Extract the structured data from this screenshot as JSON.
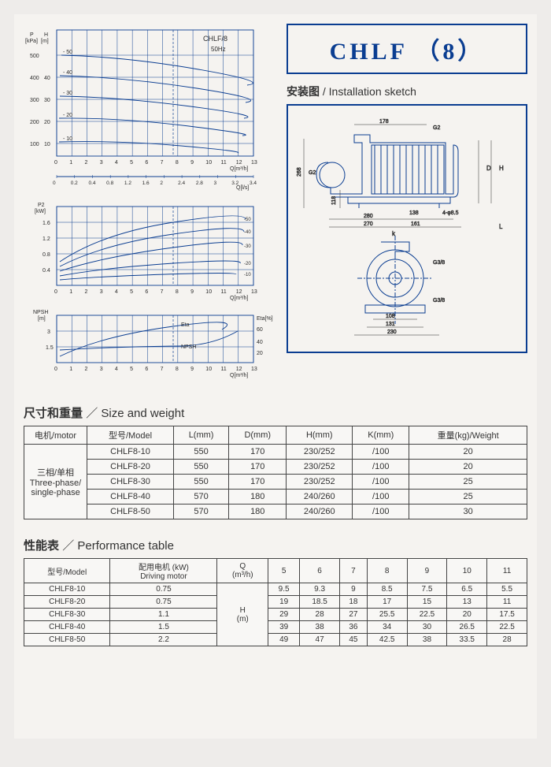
{
  "product": {
    "name": "CHLF （8）"
  },
  "install": {
    "heading_cn": "安装图",
    "heading_en": "Installation sketch"
  },
  "size_weight": {
    "heading_cn": "尺寸和重量",
    "heading_en": "Size and weight",
    "cols": [
      "电机/motor",
      "型号/Model",
      "L(mm)",
      "D(mm)",
      "H(mm)",
      "K(mm)",
      "重量(kg)/Weight"
    ],
    "motor_label": "三相/单相\nThree-phase/\nsingle-phase",
    "rows": [
      [
        "CHLF8-10",
        "550",
        "170",
        "230/252",
        "/100",
        "20"
      ],
      [
        "CHLF8-20",
        "550",
        "170",
        "230/252",
        "/100",
        "20"
      ],
      [
        "CHLF8-30",
        "550",
        "170",
        "230/252",
        "/100",
        "25"
      ],
      [
        "CHLF8-40",
        "570",
        "180",
        "240/260",
        "/100",
        "25"
      ],
      [
        "CHLF8-50",
        "570",
        "180",
        "240/260",
        "/100",
        "30"
      ]
    ]
  },
  "performance": {
    "heading_cn": "性能表",
    "heading_en": "Performance table",
    "cols": [
      "型号/Model",
      "配用电机 (kW)\nDriving motor",
      "Q\n(m³/h)",
      "5",
      "6",
      "7",
      "8",
      "9",
      "10",
      "11"
    ],
    "h_unit": "H\n(m)",
    "rows": [
      [
        "CHLF8-10",
        "0.75",
        "9.5",
        "9.3",
        "9",
        "8.5",
        "7.5",
        "6.5",
        "5.5"
      ],
      [
        "CHLF8-20",
        "0.75",
        "19",
        "18.5",
        "18",
        "17",
        "15",
        "13",
        "11"
      ],
      [
        "CHLF8-30",
        "1.1",
        "29",
        "28",
        "27",
        "25.5",
        "22.5",
        "20",
        "17.5"
      ],
      [
        "CHLF8-40",
        "1.5",
        "39",
        "38",
        "36",
        "34",
        "30",
        "26.5",
        "22.5"
      ],
      [
        "CHLF8-50",
        "2.2",
        "49",
        "47",
        "45",
        "42.5",
        "38",
        "33.5",
        "28"
      ]
    ]
  },
  "charts": {
    "colors": {
      "line": "#0a3d91",
      "text": "#2a2a2a",
      "bg": "#f5f3f0"
    },
    "font_size_axis": 7,
    "font_size_label": 8,
    "qh": {
      "title": "CHLF/8",
      "subtitle": "50Hz",
      "p_label": "P\n[kPa]",
      "h_label": "H\n[m]",
      "x_label1": "Q[m³/h]",
      "x_label2": "Q[l/s]",
      "p_ticks": [
        100,
        200,
        300,
        400,
        500
      ],
      "h_ticks": [
        10,
        20,
        30,
        40
      ],
      "x_ticks": [
        0,
        1,
        2,
        3,
        4,
        5,
        6,
        7,
        8,
        9,
        10,
        11,
        12,
        13
      ],
      "x2_ticks": [
        0,
        0.2,
        0.4,
        0.8,
        1.2,
        1.6,
        2.0,
        2.4,
        2.8,
        3.0,
        3.2,
        3.4
      ],
      "series_labels": [
        "-10",
        "-20",
        "-30",
        "-40",
        "-50"
      ],
      "xlim": [
        0,
        13
      ],
      "ylim": [
        0,
        57
      ]
    },
    "p2": {
      "y_label": "P2\n[kW]",
      "x_label": "Q[m³/h]",
      "y_ticks": [
        0.4,
        0.8,
        1.2,
        1.6
      ],
      "x_ticks": [
        0,
        1,
        2,
        3,
        4,
        5,
        6,
        7,
        8,
        9,
        10,
        11,
        12,
        13
      ],
      "series_labels": [
        "-10",
        "-20",
        "-30",
        "-40",
        "-50"
      ],
      "xlim": [
        0,
        13
      ],
      "ylim": [
        0,
        2.0
      ]
    },
    "npsh": {
      "y1_label": "NPSH\n[m]",
      "y2_label": "Eta[%]",
      "y1_ticks": [
        1.5,
        3
      ],
      "y2_ticks": [
        20,
        40,
        60
      ],
      "x_ticks": [
        0,
        1,
        2,
        3,
        4,
        5,
        6,
        7,
        8,
        9,
        10,
        11,
        12,
        13
      ],
      "x_label": "Q[m³/h]",
      "label_eta": "Eta",
      "label_npsh": "NPSH",
      "xlim": [
        0,
        13
      ],
      "ylim": [
        0,
        3.3
      ]
    }
  },
  "sketch": {
    "dims": {
      "L178": "178",
      "G2": "G2",
      "D268": "268",
      "D118": "118",
      "D280": "280",
      "D270": "270",
      "D138": "138",
      "D161": "161",
      "phi": "4-φ8.5",
      "H": "H",
      "D": "D",
      "L": "L",
      "K": "k",
      "G38": "G3/8",
      "D108": "108",
      "D131": "131",
      "D230": "230"
    }
  }
}
